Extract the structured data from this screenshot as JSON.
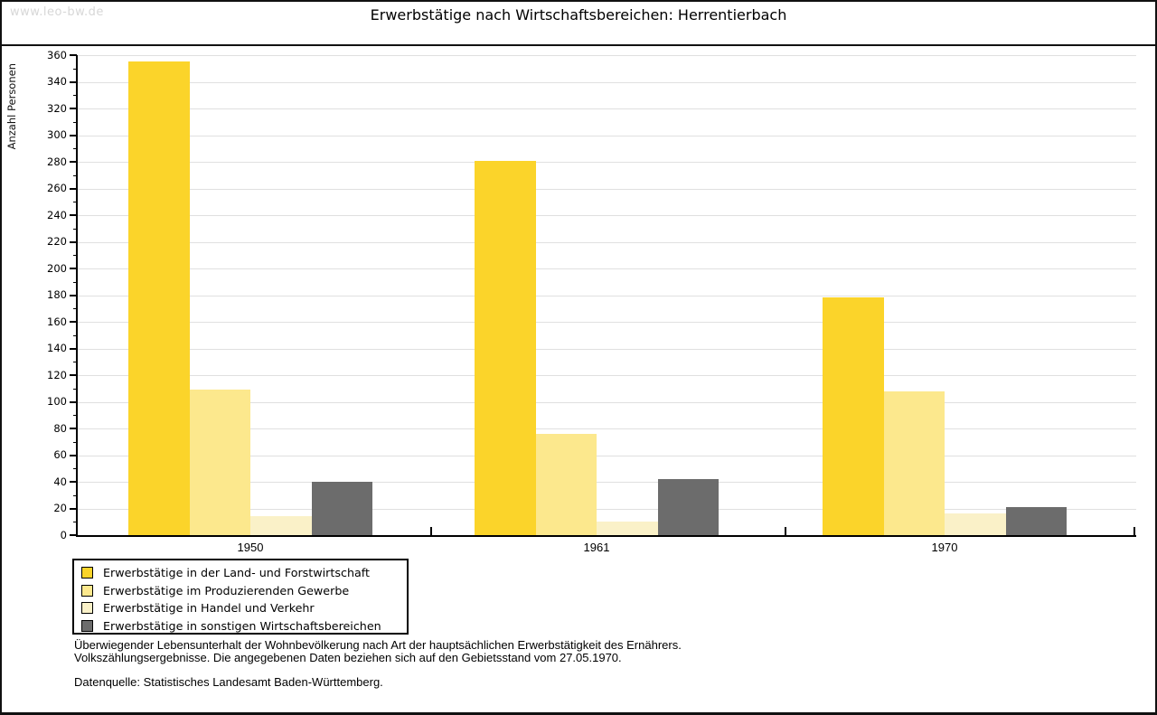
{
  "watermark": "www.leo-bw.de",
  "title": "Erwerbstätige nach Wirtschaftsbereichen: Herrentierbach",
  "chart_data": {
    "type": "bar",
    "title": "Erwerbstätige nach Wirtschaftsbereichen: Herrentierbach",
    "xlabel": "",
    "ylabel": "Anzahl Personen",
    "ylim": [
      0,
      360
    ],
    "ytick_step": 20,
    "ytick_minor_step": 10,
    "grid": true,
    "legend_position": "bottom-left",
    "categories": [
      "1950",
      "1961",
      "1970"
    ],
    "series": [
      {
        "name": "Erwerbstätige in der Land- und Forstwirtschaft",
        "color": "#FBD42A",
        "values": [
          355,
          281,
          178
        ]
      },
      {
        "name": "Erwerbstätige im Produzierenden Gewerbe",
        "color": "#FCE88D",
        "values": [
          109,
          76,
          108
        ]
      },
      {
        "name": "Erwerbstätige in Handel und Verkehr",
        "color": "#FAF1C8",
        "values": [
          14,
          10,
          16
        ]
      },
      {
        "name": "Erwerbstätige in sonstigen Wirtschaftsbereichen",
        "color": "#6C6C6C",
        "values": [
          40,
          42,
          21
        ]
      }
    ]
  },
  "footer": {
    "line1": "Überwiegender Lebensunterhalt der Wohnbevölkerung nach Art der hauptsächlichen Erwerbstätigkeit des Ernährers.",
    "line2": "Volkszählungsergebnisse. Die angegebenen Daten beziehen sich auf den Gebietsstand vom 27.05.1970.",
    "source": "Datenquelle: Statistisches Landesamt Baden-Württemberg."
  },
  "colors": {
    "gridline": "#e0e0e0",
    "axis": "#000000",
    "watermark": "#d7d7d7"
  }
}
